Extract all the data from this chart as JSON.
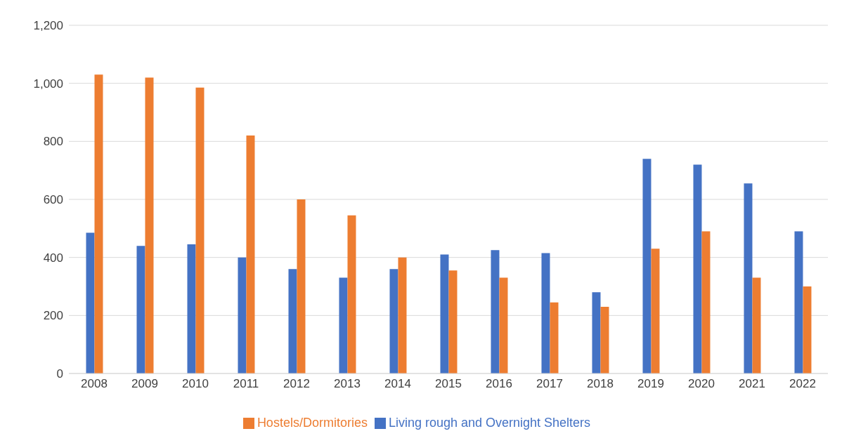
{
  "chart_data": {
    "type": "bar",
    "categories": [
      "2008",
      "2009",
      "2010",
      "2011",
      "2012",
      "2013",
      "2014",
      "2015",
      "2016",
      "2017",
      "2018",
      "2019",
      "2020",
      "2021",
      "2022"
    ],
    "series": [
      {
        "name": "Living rough and Overnight Shelters",
        "color": "#4472c4",
        "values": [
          485,
          440,
          445,
          400,
          360,
          330,
          360,
          410,
          425,
          415,
          280,
          740,
          720,
          655,
          490
        ]
      },
      {
        "name": "Hostels/Dormitories",
        "color": "#ed7d31",
        "values": [
          1030,
          1020,
          985,
          820,
          600,
          545,
          400,
          355,
          330,
          245,
          230,
          430,
          490,
          330,
          300
        ]
      }
    ],
    "ylim": [
      0,
      1200
    ],
    "yticks": [
      0,
      {
        "value": 200,
        "label": "200"
      },
      {
        "value": 400,
        "label": "400"
      },
      {
        "value": 600,
        "label": "600"
      },
      {
        "value": 800,
        "label": "800"
      },
      {
        "value": 1000,
        "label": "1,000"
      },
      {
        "value": 1200,
        "label": "1,200"
      }
    ],
    "grid": "y",
    "legend": "bottom"
  }
}
